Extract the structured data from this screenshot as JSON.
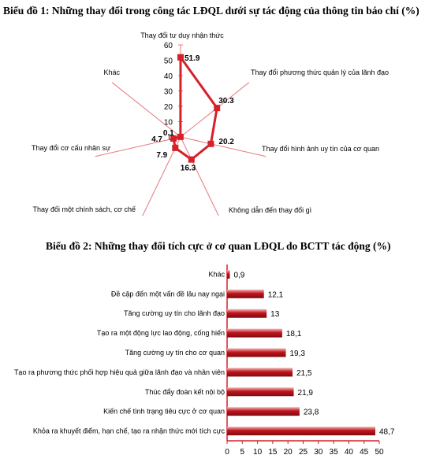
{
  "chart_data": [
    {
      "type": "radar",
      "title": "Biểu đồ 1: Những thay đổi trong công tác LĐQL dưới sự tác động của thông tin báo chí (%)",
      "categories": [
        "Thay đổi tư duy nhận thức",
        "Thay đổi phương thức quản lý của lãnh đạo",
        "Thay đổi hình ảnh uy tín của cơ quan",
        "Không dẫn đến thay đổi gì",
        "Thay đổi một chính sách, cơ chế",
        "Thay đổi cơ cấu nhân sự",
        "Khác"
      ],
      "values": [
        51.9,
        30.3,
        20.2,
        16.3,
        7.9,
        4.7,
        0.1
      ],
      "value_labels": [
        "51.9",
        "30.3",
        "20.2",
        "16.3",
        "7.9",
        "4.7",
        "0.1"
      ],
      "axis_ticks": [
        "0",
        "10",
        "20",
        "30",
        "40",
        "50",
        "60"
      ],
      "ylim": [
        0,
        60
      ],
      "color": "#d6202a"
    },
    {
      "type": "bar",
      "orientation": "horizontal",
      "title": "Biểu đồ 2: Những thay đổi tích cực ở cơ quan LĐQL do BCTT tác động (%)",
      "categories": [
        "Khác",
        "Đề cập đến một vấn đề lâu nay ngại",
        "Tăng cường uy tín cho lãnh đạo",
        "Tạo ra một động lực lao động, cống hiến",
        "Tăng cường uy tín cho cơ quan",
        "Tạo ra phương thức phối hợp hiệu quả giữa lãnh đạo và nhân viên",
        "Thúc đẩy đoàn kết nội bộ",
        "Kiến chế tình trạng tiêu cực ở cơ quan",
        "Khỏa ra khuyết điểm, hạn chế, tạo ra nhận thức mới tích cực"
      ],
      "values": [
        0.9,
        12.1,
        13,
        18.1,
        19.3,
        21.5,
        21.9,
        23.8,
        48.7
      ],
      "value_labels": [
        "0,9",
        "12,1",
        "13",
        "18,1",
        "19,3",
        "21,5",
        "21,9",
        "23,8",
        "48,7"
      ],
      "x_ticks": [
        "0",
        "5",
        "10",
        "15",
        "20",
        "25",
        "30",
        "35",
        "40",
        "45",
        "50"
      ],
      "xlim": [
        0,
        50
      ],
      "color": "#c0141c"
    }
  ]
}
